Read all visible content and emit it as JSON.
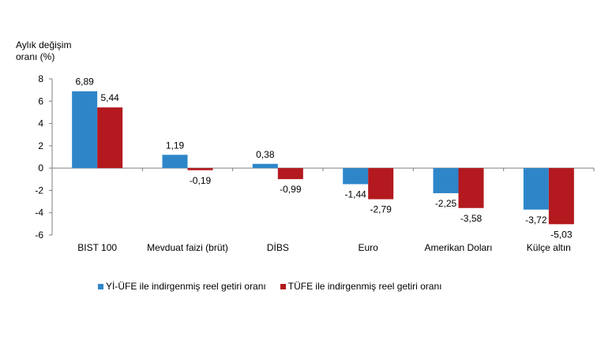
{
  "chart_data": {
    "type": "bar",
    "ylabel": [
      "Aylık değişim",
      "oranı (%)"
    ],
    "ylim": [
      -6,
      8
    ],
    "yticks": [
      8,
      6,
      4,
      2,
      0,
      -2,
      -4,
      -6
    ],
    "categories": [
      "BIST 100",
      "Mevduat faizi (brüt)",
      "DİBS",
      "Euro",
      "Amerikan Doları",
      "Külçe altın"
    ],
    "series": [
      {
        "name": "Yİ-ÜFE ile indirgenmiş reel getiri oranı",
        "color": "#2e86c9",
        "values": [
          6.89,
          1.19,
          0.38,
          -1.44,
          -2.25,
          -3.72
        ],
        "labels": [
          "6,89",
          "1,19",
          "0,38",
          "-1,44",
          "-2,25",
          "-3,72"
        ]
      },
      {
        "name": "TÜFE ile indirgenmiş reel getiri oranı",
        "color": "#b3191e",
        "values": [
          5.44,
          -0.19,
          -0.99,
          -2.79,
          -3.58,
          -5.03
        ],
        "labels": [
          "5,44",
          "-0,19",
          "-0,99",
          "-2,79",
          "-3,58",
          "-5,03"
        ]
      }
    ],
    "legend_position": "bottom-left",
    "grid": false
  }
}
